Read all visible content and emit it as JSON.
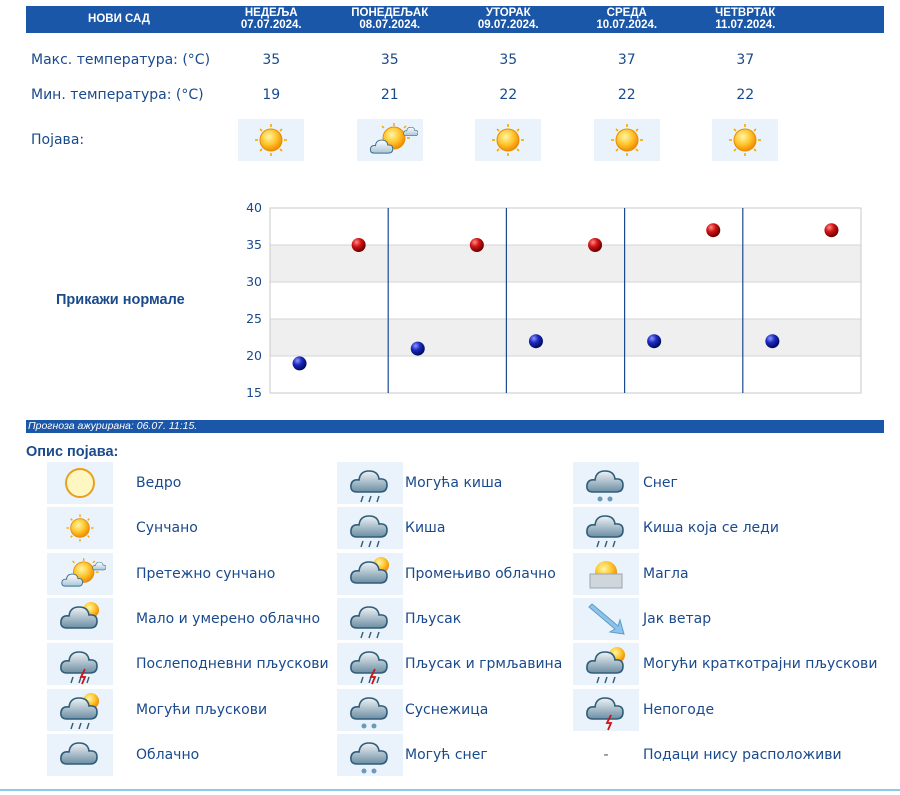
{
  "city": "НОВИ САД",
  "days": [
    {
      "name": "НЕДЕЉА",
      "date": "07.07.2024.",
      "max": "35",
      "min": "19",
      "icon": "sunny-icon"
    },
    {
      "name": "ПОНЕДЕЉАК",
      "date": "08.07.2024.",
      "max": "35",
      "min": "21",
      "icon": "mostly-sunny-icon"
    },
    {
      "name": "УТОРАК",
      "date": "09.07.2024.",
      "max": "35",
      "min": "22",
      "icon": "sunny-icon"
    },
    {
      "name": "СРЕДА",
      "date": "10.07.2024.",
      "max": "37",
      "min": "22",
      "icon": "sunny-icon"
    },
    {
      "name": "ЧЕТВРТАК",
      "date": "11.07.2024.",
      "max": "37",
      "min": "22",
      "icon": "sunny-icon"
    }
  ],
  "labels": {
    "max_temp": "Макс. температура: (°C)",
    "min_temp": "Мин. температура: (°C)",
    "phenomenon": "Појава:",
    "show_normals": "Прикажи нормале",
    "updated": "Прогноза ажурирана:  06.07. 11:15.",
    "legend_title": "Опис појава:"
  },
  "chart_data": {
    "type": "scatter",
    "title": "",
    "xlabel": "",
    "ylabel": "",
    "ylim": [
      15,
      40
    ],
    "yticks": [
      15,
      20,
      25,
      30,
      35,
      40
    ],
    "categories": [
      "07.07.2024.",
      "08.07.2024.",
      "09.07.2024.",
      "10.07.2024.",
      "11.07.2024."
    ],
    "series": [
      {
        "values": [
          35,
          35,
          35,
          37,
          37
        ],
        "color": "#c41010"
      },
      {
        "values": [
          19,
          21,
          22,
          22,
          22
        ],
        "color": "#1a28b8"
      }
    ],
    "grid": true,
    "band_color": "#efefef",
    "divider_color": "#1a4a8c"
  },
  "legend": [
    {
      "label": "Ведро",
      "icon": "clear-icon"
    },
    {
      "label": "Сунчано",
      "icon": "sunny-icon"
    },
    {
      "label": "Претежно сунчано",
      "icon": "mostly-sunny-icon"
    },
    {
      "label": "Мало и умерено облачно",
      "icon": "partly-cloudy-icon"
    },
    {
      "label": "Послеподневни пљускови",
      "icon": "afternoon-showers-icon"
    },
    {
      "label": "Могући пљускови",
      "icon": "possible-showers-icon"
    },
    {
      "label": "Облачно",
      "icon": "cloudy-icon"
    },
    {
      "label": "Могућа киша",
      "icon": "possible-rain-icon"
    },
    {
      "label": "Киша",
      "icon": "rain-icon"
    },
    {
      "label": "Промењиво облачно",
      "icon": "variable-cloudy-icon"
    },
    {
      "label": "Пљусак",
      "icon": "shower-icon"
    },
    {
      "label": "Пљусак и грмљавина",
      "icon": "thunder-shower-icon"
    },
    {
      "label": "Суснежица",
      "icon": "sleet-icon"
    },
    {
      "label": "Могућ снег",
      "icon": "possible-snow-icon"
    },
    {
      "label": "Снег",
      "icon": "snow-icon"
    },
    {
      "label": "Киша која се леди",
      "icon": "freezing-rain-icon"
    },
    {
      "label": "Магла",
      "icon": "fog-icon"
    },
    {
      "label": "Јак ветар",
      "icon": "strong-wind-icon"
    },
    {
      "label": "Могући краткотрајни пљускови",
      "icon": "brief-showers-icon"
    },
    {
      "label": "Непогоде",
      "icon": "storm-icon"
    },
    {
      "label": "Подаци нису расположиви",
      "icon": "dash",
      "symbol": "-"
    }
  ],
  "colors": {
    "header_bg": "#1a57a8",
    "text": "#1a4a8c",
    "icon_bg": "#eaf3fb"
  }
}
